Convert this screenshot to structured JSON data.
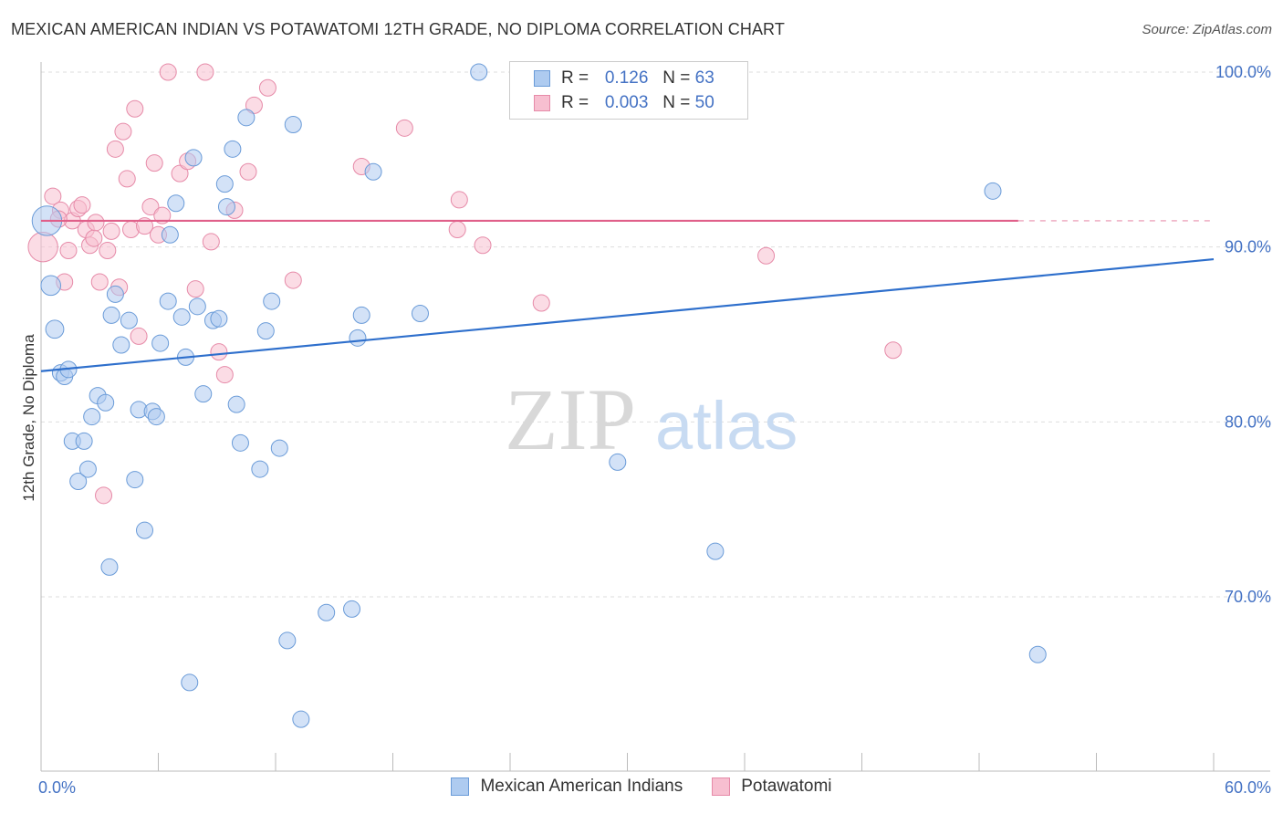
{
  "title": "MEXICAN AMERICAN INDIAN VS POTAWATOMI 12TH GRADE, NO DIPLOMA CORRELATION CHART",
  "source": "Source: ZipAtlas.com",
  "watermark": {
    "zip": "ZIP",
    "atlas": "atlas"
  },
  "legend": {
    "rows": [
      {
        "r_label": "R =",
        "r_value": "0.126",
        "n_label": "N =",
        "n_value": "63"
      },
      {
        "r_label": "R =",
        "r_value": "0.003",
        "n_label": "N =",
        "n_value": "50"
      }
    ]
  },
  "colors": {
    "blue_fill": "#aecbf0",
    "blue_stroke": "#6a9bd8",
    "blue_line": "#2e6fcc",
    "pink_fill": "#f7bfd0",
    "pink_stroke": "#e68aa8",
    "pink_line": "#e0608a",
    "tick_text": "#4472c4",
    "grid": "#dddddd"
  },
  "chart_data": {
    "type": "scatter",
    "title": "MEXICAN AMERICAN INDIAN VS POTAWATOMI 12TH GRADE, NO DIPLOMA CORRELATION CHART",
    "xlabel": "",
    "ylabel": "12th Grade, No Diploma",
    "xlim": [
      0,
      60
    ],
    "ylim": [
      60,
      102
    ],
    "x_tick_labels": [
      "0.0%",
      "60.0%"
    ],
    "y_ticks": [
      70,
      80,
      90,
      100
    ],
    "y_tick_labels": [
      "70.0%",
      "80.0%",
      "90.0%",
      "100.0%"
    ],
    "grid": true,
    "legend_position": "bottom",
    "series": [
      {
        "name": "Mexican American Indians",
        "r": 0.126,
        "n": 63,
        "trend": [
          [
            0,
            82.9
          ],
          [
            60,
            89.3
          ]
        ],
        "points": [
          [
            0.3,
            91.5,
            1.8
          ],
          [
            0.5,
            87.8,
            1.2
          ],
          [
            0.7,
            85.3,
            1.1
          ],
          [
            1.0,
            82.8,
            1.0
          ],
          [
            1.2,
            82.6,
            1.0
          ],
          [
            1.4,
            83.0,
            1.0
          ],
          [
            1.6,
            78.9,
            1.0
          ],
          [
            1.9,
            76.6,
            1.0
          ],
          [
            2.2,
            78.9,
            1.0
          ],
          [
            2.4,
            77.3,
            1.0
          ],
          [
            2.6,
            80.3,
            1.0
          ],
          [
            2.9,
            81.5,
            1.0
          ],
          [
            3.3,
            81.1,
            1.0
          ],
          [
            3.6,
            86.1,
            1.0
          ],
          [
            3.8,
            87.3,
            1.0
          ],
          [
            4.1,
            84.4,
            1.0
          ],
          [
            4.5,
            85.8,
            1.0
          ],
          [
            4.8,
            76.7,
            1.0
          ],
          [
            5.0,
            80.7,
            1.0
          ],
          [
            5.3,
            73.8,
            1.0
          ],
          [
            5.7,
            80.6,
            1.0
          ],
          [
            5.9,
            80.3,
            1.0
          ],
          [
            6.1,
            84.5,
            1.0
          ],
          [
            6.5,
            86.9,
            1.0
          ],
          [
            6.6,
            90.7,
            1.0
          ],
          [
            6.9,
            92.5,
            1.0
          ],
          [
            7.2,
            86.0,
            1.0
          ],
          [
            7.4,
            83.7,
            1.0
          ],
          [
            7.6,
            65.1,
            1.0
          ],
          [
            7.8,
            95.1,
            1.0
          ],
          [
            8.0,
            86.6,
            1.0
          ],
          [
            8.3,
            81.6,
            1.0
          ],
          [
            8.8,
            85.8,
            1.0
          ],
          [
            9.1,
            85.9,
            1.0
          ],
          [
            9.4,
            93.6,
            1.0
          ],
          [
            9.5,
            92.3,
            1.0
          ],
          [
            9.8,
            95.6,
            1.0
          ],
          [
            10.0,
            81.0,
            1.0
          ],
          [
            10.2,
            78.8,
            1.0
          ],
          [
            10.5,
            97.4,
            1.0
          ],
          [
            11.2,
            77.3,
            1.0
          ],
          [
            11.5,
            85.2,
            1.0
          ],
          [
            11.8,
            86.9,
            1.0
          ],
          [
            12.2,
            78.5,
            1.0
          ],
          [
            12.6,
            67.5,
            1.0
          ],
          [
            12.9,
            97.0,
            1.0
          ],
          [
            13.3,
            63.0,
            1.0
          ],
          [
            14.6,
            69.1,
            1.0
          ],
          [
            15.9,
            69.3,
            1.0
          ],
          [
            16.2,
            84.8,
            1.0
          ],
          [
            16.4,
            86.1,
            1.0
          ],
          [
            17.0,
            94.3,
            1.0
          ],
          [
            19.4,
            86.2,
            1.0
          ],
          [
            22.4,
            100.0,
            1.0
          ],
          [
            26.0,
            100.0,
            1.0
          ],
          [
            26.4,
            100.0,
            1.0
          ],
          [
            28.5,
            100.0,
            1.0
          ],
          [
            29.5,
            77.7,
            1.0
          ],
          [
            31.0,
            100.0,
            1.0
          ],
          [
            34.5,
            72.6,
            1.0
          ],
          [
            48.7,
            93.2,
            1.0
          ],
          [
            51.0,
            66.7,
            1.0
          ],
          [
            3.5,
            71.7,
            1.0
          ]
        ]
      },
      {
        "name": "Potawatomi",
        "r": 0.003,
        "n": 50,
        "trend": [
          [
            0,
            91.5
          ],
          [
            50,
            91.5
          ]
        ],
        "trend_dashed_to": 60,
        "points": [
          [
            0.1,
            90.0,
            1.8
          ],
          [
            0.6,
            92.9,
            1.0
          ],
          [
            1.0,
            92.1,
            1.0
          ],
          [
            1.2,
            88.0,
            1.0
          ],
          [
            1.4,
            89.8,
            1.0
          ],
          [
            1.6,
            91.5,
            1.0
          ],
          [
            1.9,
            92.2,
            1.0
          ],
          [
            2.1,
            92.4,
            1.0
          ],
          [
            2.3,
            91.0,
            1.0
          ],
          [
            2.5,
            90.1,
            1.0
          ],
          [
            2.7,
            90.5,
            1.0
          ],
          [
            3.0,
            88.0,
            1.0
          ],
          [
            3.2,
            75.8,
            1.0
          ],
          [
            3.4,
            89.8,
            1.0
          ],
          [
            3.6,
            90.9,
            1.0
          ],
          [
            3.8,
            95.6,
            1.0
          ],
          [
            4.0,
            87.7,
            1.0
          ],
          [
            4.2,
            96.6,
            1.0
          ],
          [
            4.4,
            93.9,
            1.0
          ],
          [
            4.6,
            91.0,
            1.0
          ],
          [
            4.8,
            97.9,
            1.0
          ],
          [
            5.0,
            84.9,
            1.0
          ],
          [
            5.3,
            91.2,
            1.0
          ],
          [
            5.6,
            92.3,
            1.0
          ],
          [
            5.8,
            94.8,
            1.0
          ],
          [
            6.0,
            90.7,
            1.0
          ],
          [
            6.5,
            100.0,
            1.0
          ],
          [
            7.1,
            94.2,
            1.0
          ],
          [
            7.5,
            94.9,
            1.0
          ],
          [
            7.9,
            87.6,
            1.0
          ],
          [
            8.4,
            100.0,
            1.0
          ],
          [
            8.7,
            90.3,
            1.0
          ],
          [
            9.1,
            84.0,
            1.0
          ],
          [
            9.4,
            82.7,
            1.0
          ],
          [
            9.9,
            92.1,
            1.0
          ],
          [
            10.6,
            94.3,
            1.0
          ],
          [
            10.9,
            98.1,
            1.0
          ],
          [
            11.6,
            99.1,
            1.0
          ],
          [
            12.9,
            88.1,
            1.0
          ],
          [
            16.4,
            94.6,
            1.0
          ],
          [
            18.6,
            96.8,
            1.0
          ],
          [
            21.4,
            92.7,
            1.0
          ],
          [
            21.3,
            91.0,
            1.0
          ],
          [
            22.6,
            90.1,
            1.0
          ],
          [
            25.6,
            86.8,
            1.0
          ],
          [
            37.1,
            89.5,
            1.0
          ],
          [
            43.6,
            84.1,
            1.0
          ],
          [
            0.9,
            91.6,
            1.0
          ],
          [
            2.8,
            91.4,
            1.0
          ],
          [
            6.2,
            91.8,
            1.0
          ]
        ]
      }
    ]
  }
}
